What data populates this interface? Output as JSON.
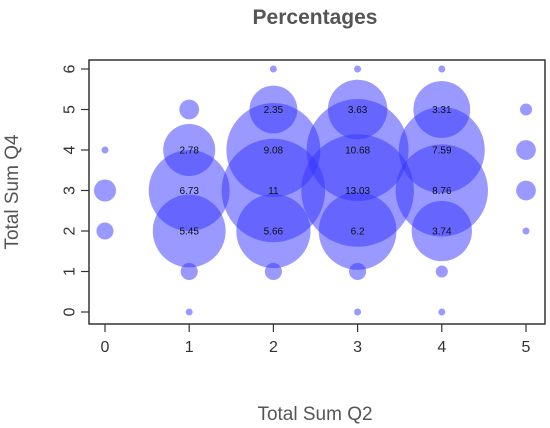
{
  "chart_data": {
    "type": "scatter",
    "title": "Percentages",
    "xlabel": "Total Sum Q2",
    "ylabel": "Total Sum Q4",
    "xlim": [
      -0.2,
      5.2
    ],
    "ylim": [
      -0.2,
      6.2
    ],
    "xticks": [
      "0",
      "1",
      "2",
      "3",
      "4",
      "5"
    ],
    "yticks": [
      "0",
      "1",
      "2",
      "3",
      "4",
      "5",
      "6"
    ],
    "grid": false,
    "legend": "none",
    "bubble_color": "#3333ff",
    "bubble_opacity": 0.5,
    "size_encoding": "bubble area proportional to percentage",
    "points": [
      {
        "x": 0,
        "y": 2,
        "value": 0.3,
        "label": ""
      },
      {
        "x": 0,
        "y": 3,
        "value": 0.5,
        "label": ""
      },
      {
        "x": 0,
        "y": 4,
        "value": 0.05,
        "label": ""
      },
      {
        "x": 1,
        "y": 0,
        "value": 0.05,
        "label": ""
      },
      {
        "x": 1,
        "y": 1,
        "value": 0.3,
        "label": ""
      },
      {
        "x": 1,
        "y": 2,
        "value": 5.45,
        "label": "5.45"
      },
      {
        "x": 1,
        "y": 3,
        "value": 6.73,
        "label": "6.73"
      },
      {
        "x": 1,
        "y": 4,
        "value": 2.78,
        "label": "2.78"
      },
      {
        "x": 1,
        "y": 5,
        "value": 0.4,
        "label": ""
      },
      {
        "x": 2,
        "y": 1,
        "value": 0.3,
        "label": ""
      },
      {
        "x": 2,
        "y": 2,
        "value": 5.66,
        "label": "5.66"
      },
      {
        "x": 2,
        "y": 3,
        "value": 11,
        "label": "11"
      },
      {
        "x": 2,
        "y": 4,
        "value": 9.08,
        "label": "9.08"
      },
      {
        "x": 2,
        "y": 5,
        "value": 2.35,
        "label": "2.35"
      },
      {
        "x": 2,
        "y": 6,
        "value": 0.05,
        "label": ""
      },
      {
        "x": 3,
        "y": 0,
        "value": 0.05,
        "label": ""
      },
      {
        "x": 3,
        "y": 1,
        "value": 0.3,
        "label": ""
      },
      {
        "x": 3,
        "y": 2,
        "value": 6.2,
        "label": "6.2"
      },
      {
        "x": 3,
        "y": 3,
        "value": 13.03,
        "label": "13.03"
      },
      {
        "x": 3,
        "y": 4,
        "value": 10.68,
        "label": "10.68"
      },
      {
        "x": 3,
        "y": 5,
        "value": 3.63,
        "label": "3.63"
      },
      {
        "x": 3,
        "y": 6,
        "value": 0.05,
        "label": ""
      },
      {
        "x": 4,
        "y": 0,
        "value": 0.05,
        "label": ""
      },
      {
        "x": 4,
        "y": 1,
        "value": 0.15,
        "label": ""
      },
      {
        "x": 4,
        "y": 2,
        "value": 3.74,
        "label": "3.74"
      },
      {
        "x": 4,
        "y": 3,
        "value": 8.76,
        "label": "8.76"
      },
      {
        "x": 4,
        "y": 4,
        "value": 7.59,
        "label": "7.59"
      },
      {
        "x": 4,
        "y": 5,
        "value": 3.31,
        "label": "3.31"
      },
      {
        "x": 4,
        "y": 6,
        "value": 0.05,
        "label": ""
      },
      {
        "x": 5,
        "y": 2,
        "value": 0.05,
        "label": ""
      },
      {
        "x": 5,
        "y": 3,
        "value": 0.4,
        "label": ""
      },
      {
        "x": 5,
        "y": 4,
        "value": 0.4,
        "label": ""
      },
      {
        "x": 5,
        "y": 5,
        "value": 0.15,
        "label": ""
      }
    ]
  }
}
